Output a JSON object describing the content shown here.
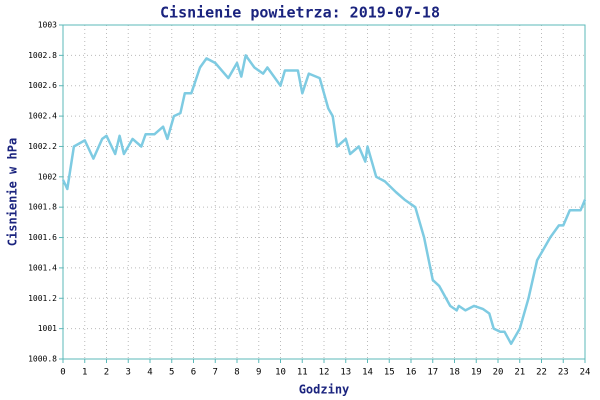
{
  "chart_data": {
    "type": "line",
    "title": "Cisnienie powietrza: 2019-07-18",
    "x_label": "Godziny",
    "y_label": "Cisnienie w hPa",
    "x": [
      0,
      0.1,
      0.2,
      0.5,
      1.0,
      1.4,
      1.8,
      2.0,
      2.4,
      2.6,
      2.8,
      3.2,
      3.6,
      3.8,
      4.2,
      4.6,
      4.8,
      5.1,
      5.4,
      5.6,
      5.9,
      6.3,
      6.6,
      7.0,
      7.6,
      8.0,
      8.2,
      8.4,
      8.8,
      9.2,
      9.4,
      10.0,
      10.2,
      10.8,
      11.0,
      11.3,
      11.8,
      12.2,
      12.4,
      12.6,
      13.0,
      13.2,
      13.6,
      13.9,
      14.0,
      14.4,
      14.8,
      15.3,
      15.7,
      16.2,
      16.6,
      17.0,
      17.3,
      17.8,
      18.1,
      18.2,
      18.5,
      18.9,
      19.3,
      19.6,
      19.8,
      20.1,
      20.3,
      20.6,
      21.0,
      21.4,
      21.8,
      22.0,
      22.4,
      22.8,
      23.0,
      23.3,
      23.6,
      23.8,
      24.0
    ],
    "series": [
      {
        "name": "Cisnienie",
        "color": "#7ecbe2",
        "values": [
          1001.98,
          1001.95,
          1001.92,
          1002.2,
          1002.24,
          1002.12,
          1002.25,
          1002.27,
          1002.15,
          1002.27,
          1002.15,
          1002.25,
          1002.2,
          1002.28,
          1002.28,
          1002.33,
          1002.25,
          1002.4,
          1002.42,
          1002.55,
          1002.55,
          1002.72,
          1002.78,
          1002.75,
          1002.65,
          1002.75,
          1002.66,
          1002.8,
          1002.72,
          1002.68,
          1002.72,
          1002.6,
          1002.7,
          1002.7,
          1002.55,
          1002.68,
          1002.65,
          1002.45,
          1002.4,
          1002.2,
          1002.25,
          1002.15,
          1002.2,
          1002.1,
          1002.2,
          1002.0,
          1001.97,
          1001.9,
          1001.85,
          1001.8,
          1001.6,
          1001.32,
          1001.28,
          1001.15,
          1001.12,
          1001.15,
          1001.12,
          1001.15,
          1001.13,
          1001.1,
          1001.0,
          1000.98,
          1000.98,
          1000.9,
          1001.0,
          1001.2,
          1001.45,
          1001.5,
          1001.6,
          1001.68,
          1001.68,
          1001.78,
          1001.78,
          1001.78,
          1001.85
        ]
      }
    ],
    "xlim": [
      0,
      24
    ],
    "xticks": [
      0,
      1,
      2,
      3,
      4,
      5,
      6,
      7,
      8,
      9,
      10,
      11,
      12,
      13,
      14,
      15,
      16,
      17,
      18,
      19,
      20,
      21,
      22,
      23,
      24
    ],
    "ylim": [
      1000.8,
      1003
    ],
    "yticks": [
      1000.8,
      1001,
      1001.2,
      1001.4,
      1001.6,
      1001.8,
      1002,
      1002.2,
      1002.4,
      1002.6,
      1002.8,
      1003
    ],
    "grid": true
  }
}
